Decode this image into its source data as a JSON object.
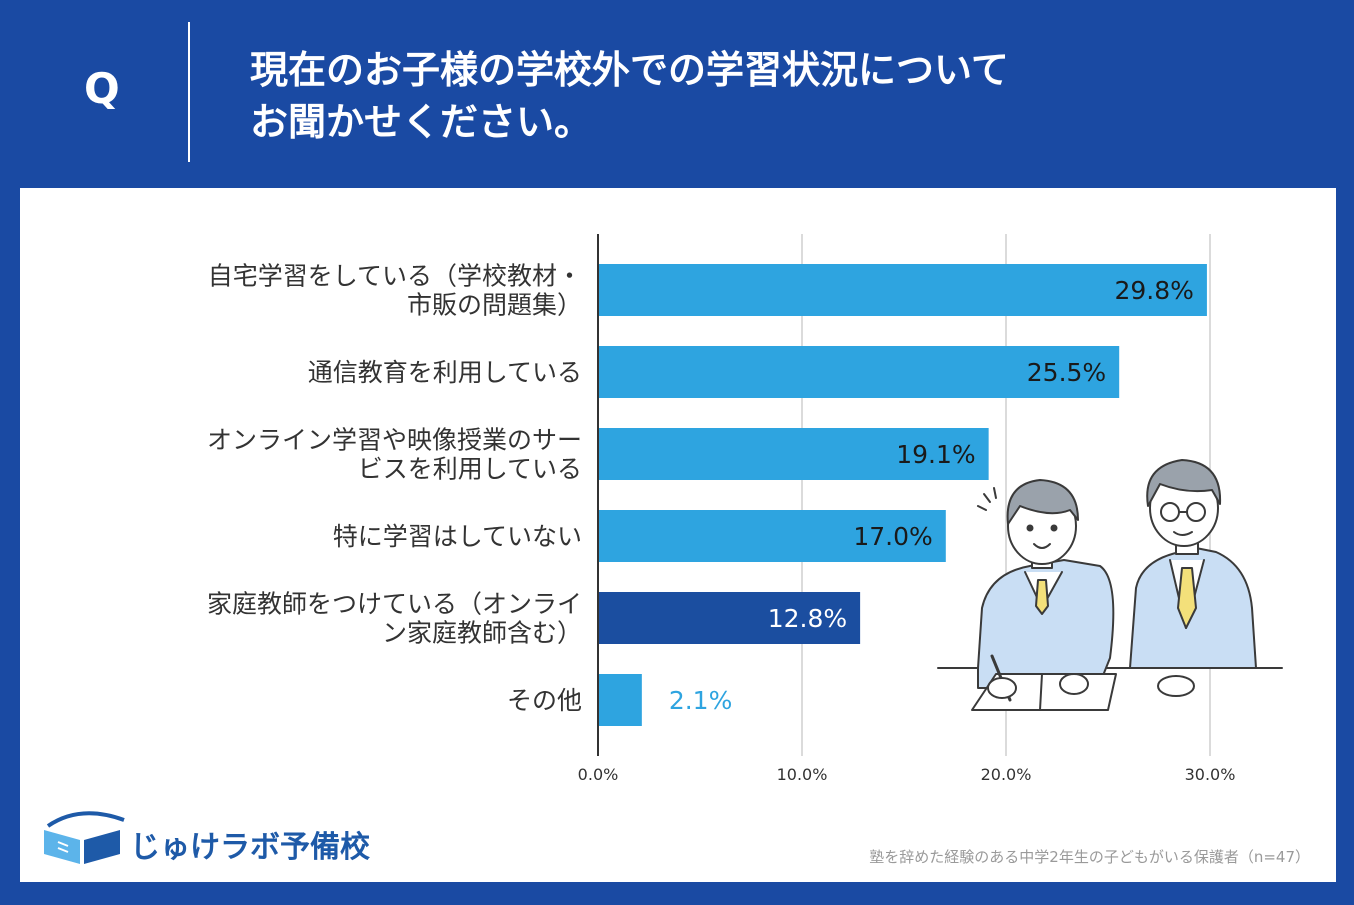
{
  "header": {
    "q_label": "Q",
    "title_lines": [
      "現在のお子様の学校外での学習状況について",
      "お聞かせください。"
    ]
  },
  "chart_data": {
    "type": "bar",
    "orientation": "horizontal",
    "categories": [
      [
        "自宅学習をしている（学校教材・",
        "市販の問題集）"
      ],
      [
        "通信教育を利用している"
      ],
      [
        "オンライン学習や映像授業のサー",
        "ビスを利用している"
      ],
      [
        "特に学習はしていない"
      ],
      [
        "家庭教師をつけている（オンライ",
        "ン家庭教師含む）"
      ],
      [
        "その他"
      ]
    ],
    "values": [
      29.8,
      25.5,
      19.1,
      17.0,
      12.8,
      2.1
    ],
    "value_labels": [
      "29.8%",
      "25.5%",
      "19.1%",
      "17.0%",
      "12.8%",
      "2.1%"
    ],
    "bar_colors": [
      "#2ea4e0",
      "#2ea4e0",
      "#2ea4e0",
      "#2ea4e0",
      "#1b4ea0",
      "#2ea4e0"
    ],
    "xlim": [
      0,
      30
    ],
    "xticks": [
      0,
      10,
      20,
      30
    ],
    "xtick_labels": [
      "0.0%",
      "10.0%",
      "20.0%",
      "30.0%"
    ],
    "grid": true,
    "title": "",
    "xlabel": "",
    "ylabel": ""
  },
  "branding": {
    "logo_text": "じゅけラボ予備校",
    "logo_icon": "book-icon"
  },
  "footnote": "塾を辞めた経験のある中学2年生の子どもがいる保護者（n=47）",
  "colors": {
    "background": "#1a4aa3",
    "bar_primary": "#2ea4e0",
    "bar_highlight": "#1b4ea0",
    "logo": "#1e5aa8"
  }
}
